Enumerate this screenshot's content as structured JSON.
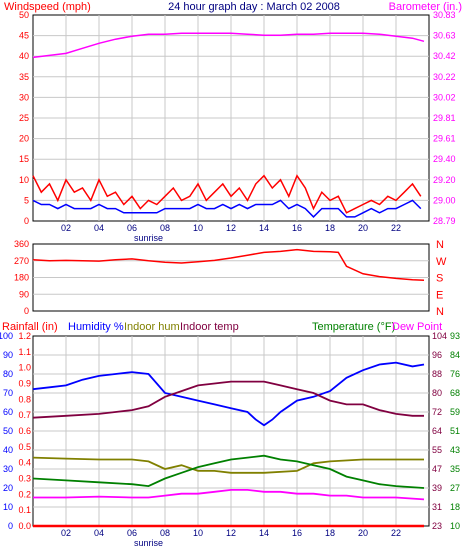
{
  "chart_data": [
    {
      "type": "line",
      "title": "24 hour graph day : March 02 2008",
      "ylabel_left": "Windspeed (mph)",
      "ylabel_right": "Barometer (in.)",
      "x_ticks": [
        "02",
        "04",
        "06",
        "08",
        "10",
        "12",
        "14",
        "16",
        "18",
        "20",
        "22"
      ],
      "sunrise_label": "sunrise",
      "sunrise_hour": 7.0,
      "x_range": [
        0,
        24
      ],
      "ylim_left": [
        0,
        50
      ],
      "yticks_left": [
        "0",
        "5",
        "10",
        "15",
        "20",
        "25",
        "30",
        "35",
        "40",
        "45",
        "50"
      ],
      "ylim_right": [
        28.79,
        30.83
      ],
      "yticks_right": [
        "28.79",
        "29.00",
        "29.20",
        "29.40",
        "29.61",
        "29.81",
        "30.02",
        "30.22",
        "30.42",
        "30.63",
        "30.83"
      ],
      "grid": true,
      "series": [
        {
          "axis": "right",
          "color": "#ff00ff",
          "x": [
            0,
            1,
            2,
            3,
            4,
            5,
            6,
            7,
            8,
            9,
            10,
            11,
            12,
            13,
            14,
            15,
            16,
            17,
            18,
            19,
            20,
            21,
            22,
            23,
            23.7
          ],
          "values": [
            30.41,
            30.43,
            30.45,
            30.5,
            30.55,
            30.59,
            30.62,
            30.64,
            30.64,
            30.65,
            30.65,
            30.65,
            30.65,
            30.64,
            30.63,
            30.63,
            30.64,
            30.64,
            30.65,
            30.65,
            30.65,
            30.64,
            30.62,
            30.6,
            30.57
          ]
        },
        {
          "axis": "left",
          "color": "#ff0000",
          "x": [
            0,
            0.5,
            1,
            1.5,
            2,
            2.5,
            3,
            3.5,
            4,
            4.5,
            5,
            5.5,
            6,
            6.5,
            7,
            7.5,
            8,
            8.5,
            9,
            9.5,
            10,
            10.5,
            11,
            11.5,
            12,
            12.5,
            13,
            13.5,
            14,
            14.5,
            15,
            15.5,
            16,
            16.5,
            17,
            17.5,
            18,
            18.5,
            19,
            19.5,
            20,
            20.5,
            21,
            21.5,
            22,
            22.5,
            23,
            23.5
          ],
          "values": [
            11,
            7,
            9,
            5,
            10,
            7,
            8,
            5,
            10,
            6,
            7,
            4,
            6,
            3,
            5,
            4,
            6,
            8,
            5,
            6,
            9,
            5,
            7,
            9,
            6,
            8,
            5,
            9,
            11,
            8,
            10,
            6,
            11,
            8,
            3,
            7,
            5,
            6,
            2,
            3,
            4,
            5,
            4,
            6,
            5,
            7,
            9,
            6
          ]
        },
        {
          "axis": "left",
          "color": "#0000ff",
          "x": [
            0,
            0.5,
            1,
            1.5,
            2,
            2.5,
            3,
            3.5,
            4,
            4.5,
            5,
            5.5,
            6,
            6.5,
            7,
            7.5,
            8,
            8.5,
            9,
            9.5,
            10,
            10.5,
            11,
            11.5,
            12,
            12.5,
            13,
            13.5,
            14,
            14.5,
            15,
            15.5,
            16,
            16.5,
            17,
            17.5,
            18,
            18.5,
            19,
            19.5,
            20,
            20.5,
            21,
            21.5,
            22,
            22.5,
            23,
            23.5
          ],
          "values": [
            5,
            4,
            4,
            3,
            4,
            3,
            3,
            3,
            4,
            3,
            3,
            2,
            2,
            2,
            2,
            2,
            3,
            3,
            3,
            3,
            4,
            3,
            3,
            4,
            3,
            4,
            3,
            4,
            4,
            4,
            5,
            3,
            4,
            3,
            1,
            3,
            3,
            3,
            1,
            1,
            2,
            3,
            2,
            3,
            3,
            4,
            5,
            3
          ]
        }
      ]
    },
    {
      "type": "line",
      "ylim_left": [
        0,
        360
      ],
      "yticks_left": [
        "0",
        "90",
        "180",
        "270",
        "360"
      ],
      "yticks_right": [
        "N",
        "E",
        "S",
        "W",
        "N"
      ],
      "x_range": [
        0,
        24
      ],
      "grid": true,
      "series": [
        {
          "axis": "left",
          "color": "#ff0000",
          "x": [
            0,
            1,
            2,
            3,
            4,
            5,
            6,
            7,
            8,
            9,
            10,
            11,
            12,
            13,
            14,
            15,
            16,
            17,
            18,
            18.5,
            19,
            20,
            21,
            22,
            23,
            23.7
          ],
          "values": [
            275,
            270,
            272,
            270,
            268,
            275,
            280,
            270,
            262,
            258,
            265,
            272,
            285,
            300,
            315,
            320,
            330,
            320,
            318,
            315,
            240,
            200,
            185,
            175,
            168,
            165
          ]
        }
      ]
    },
    {
      "type": "line",
      "legend": [
        "Rainfall (in)",
        "Humidity %",
        "Indoor hum",
        "Indoor temp",
        "Temperature (°F)",
        "Dew Point"
      ],
      "legend_colors": [
        "#ff0000",
        "#0000ff",
        "#808000",
        "#800040",
        "#008000",
        "#ff00ff"
      ],
      "yticks_rain": [
        "0.0",
        "0.1",
        "0.2",
        "0.3",
        "0.4",
        "0.5",
        "0.6",
        "0.7",
        "0.8",
        "0.9",
        "1.0",
        "1.1",
        "1.2"
      ],
      "yticks_humidity": [
        "0",
        "10",
        "20",
        "30",
        "40",
        "50",
        "60",
        "70",
        "80",
        "90",
        "100"
      ],
      "yticks_temp_a": [
        "23",
        "31",
        "39",
        "47",
        "55",
        "64",
        "72",
        "80",
        "88",
        "96",
        "104"
      ],
      "yticks_temp_b": [
        "10",
        "18",
        "27",
        "35",
        "43",
        "51",
        "59",
        "68",
        "76",
        "84",
        "93"
      ],
      "x_ticks": [
        "02",
        "04",
        "06",
        "08",
        "10",
        "12",
        "14",
        "16",
        "18",
        "20",
        "22"
      ],
      "sunrise_label": "sunrise",
      "sunrise_hour": 7.0,
      "x_range": [
        0,
        24
      ],
      "grid": true,
      "series": [
        {
          "name": "Rainfall (in)",
          "axis": "rain",
          "color": "#ff0000",
          "x": [
            0,
            23.7
          ],
          "values": [
            0.0,
            0.0
          ]
        },
        {
          "name": "Humidity %",
          "axis": "humidity",
          "color": "#0000ff",
          "x": [
            0,
            1,
            2,
            3,
            4,
            5,
            6,
            7,
            7.5,
            8,
            9,
            10,
            11,
            12,
            13,
            13.5,
            14,
            14.5,
            15,
            16,
            17,
            18,
            19,
            20,
            21,
            22,
            23,
            23.7
          ],
          "values": [
            72,
            73,
            74,
            77,
            79,
            80,
            81,
            80,
            75,
            70,
            68,
            66,
            64,
            62,
            60,
            56,
            53,
            56,
            60,
            66,
            68,
            71,
            78,
            82,
            85,
            86,
            84,
            85
          ]
        },
        {
          "name": "Indoor hum",
          "axis": "humidity",
          "color": "#808000",
          "x": [
            0,
            2,
            4,
            6,
            7,
            8,
            9,
            10,
            11,
            12,
            14,
            16,
            17,
            18,
            20,
            22,
            23.7
          ],
          "values": [
            36,
            35.5,
            35,
            35,
            34,
            30,
            32,
            29,
            29,
            28,
            28,
            29,
            33,
            34,
            35,
            35,
            35
          ]
        },
        {
          "name": "Indoor temp",
          "axis": "humidity",
          "color": "#800040",
          "x": [
            0,
            2,
            4,
            5,
            6,
            7,
            8,
            9,
            10,
            11,
            12,
            14,
            15,
            16,
            17,
            18,
            19,
            20,
            21,
            22,
            23,
            23.7
          ],
          "values": [
            57,
            58,
            59,
            60,
            61,
            63,
            68,
            71,
            74,
            75,
            76,
            76,
            74,
            72,
            70,
            66,
            64,
            64,
            61,
            59,
            58,
            58
          ]
        },
        {
          "name": "Temperature (°F)",
          "axis": "humidity",
          "color": "#008000",
          "x": [
            0,
            2,
            4,
            6,
            7,
            8,
            9,
            10,
            11,
            12,
            13,
            14,
            15,
            16,
            17,
            18,
            19,
            20,
            21,
            22,
            23.7
          ],
          "values": [
            25,
            24,
            23,
            22,
            21,
            25,
            28,
            31,
            33,
            35,
            36,
            37,
            35,
            34,
            32,
            30,
            26,
            24,
            22,
            21,
            20
          ]
        },
        {
          "name": "Dew Point",
          "axis": "humidity",
          "color": "#ff00ff",
          "x": [
            0,
            2,
            4,
            6,
            7,
            8,
            9,
            10,
            11,
            12,
            13,
            14,
            15,
            16,
            17,
            18,
            19,
            20,
            21,
            22,
            23.7
          ],
          "values": [
            15,
            15,
            15.5,
            15,
            15,
            16,
            17,
            17,
            18,
            19,
            19,
            18,
            18,
            17,
            17,
            16,
            16,
            15,
            15,
            15,
            14
          ]
        }
      ]
    }
  ]
}
